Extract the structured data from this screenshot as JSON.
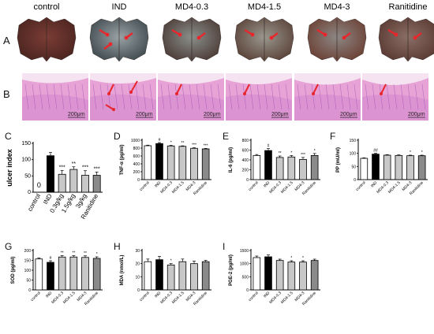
{
  "row_a": {
    "letter": "A",
    "groups": [
      {
        "label": "control",
        "tissue": "#7a3d34",
        "shade": "#4b2420",
        "arrows": 0
      },
      {
        "label": "IND",
        "tissue": "#9aa2a4",
        "shade": "#3f4a4f",
        "arrows": 3
      },
      {
        "label": "MD4-0.3",
        "tissue": "#8a8f8c",
        "shade": "#4c3b35",
        "arrows": 2
      },
      {
        "label": "MD4-1.5",
        "tissue": "#9a978e",
        "shade": "#5a4238",
        "arrows": 2
      },
      {
        "label": "MD4-3",
        "tissue": "#8d8784",
        "shade": "#6b4034",
        "arrows": 2
      },
      {
        "label": "Ranitidine",
        "tissue": "#8a6e66",
        "shade": "#5a3a33",
        "arrows": 2
      }
    ]
  },
  "row_b": {
    "letter": "B",
    "scale_label": "200μm",
    "panels": [
      {
        "arrows": 0
      },
      {
        "arrows": 3
      },
      {
        "arrows": 1
      },
      {
        "arrows": 1
      },
      {
        "arrows": 1
      },
      {
        "arrows": 1
      }
    ]
  },
  "chart_data": [
    {
      "id": "C",
      "type": "bar",
      "ylabel": "ulcer index",
      "ylim": [
        0,
        150
      ],
      "yticks": [
        0,
        50,
        100,
        150
      ],
      "categories": [
        "control",
        "IND",
        "0.3g/kg",
        "1.5g/kg",
        "3g/kg",
        "Ranitidine"
      ],
      "values": [
        0,
        112,
        55,
        70,
        52,
        52
      ],
      "errors": [
        0,
        10,
        12,
        8,
        14,
        10
      ],
      "sig": [
        "",
        "",
        "***",
        "**",
        "***",
        "***"
      ],
      "value_labels": [
        "0",
        "",
        "",
        "",
        "",
        ""
      ]
    },
    {
      "id": "D",
      "type": "bar",
      "ylabel": "TNF-α (pg/ml)",
      "ylim": [
        0,
        1000
      ],
      "yticks": [
        0,
        200,
        400,
        600,
        800,
        1000
      ],
      "categories": [
        "control",
        "IND",
        "MD4-0.3",
        "MD4-1.5",
        "MD4-3",
        "Ranitidine"
      ],
      "values": [
        860,
        915,
        855,
        845,
        795,
        780
      ],
      "errors": [
        15,
        25,
        15,
        12,
        15,
        12
      ],
      "sig": [
        "",
        "#",
        "*",
        "**",
        "***",
        "***"
      ]
    },
    {
      "id": "E",
      "type": "bar",
      "ylabel": "IL-6 (pg/ml)",
      "ylim": [
        0,
        800
      ],
      "yticks": [
        0,
        200,
        400,
        600,
        800
      ],
      "categories": [
        "control",
        "IND",
        "MD4-0.3",
        "MD4-1.5",
        "MD4-3",
        "Ranitidine"
      ],
      "values": [
        490,
        590,
        450,
        460,
        410,
        490
      ],
      "errors": [
        20,
        40,
        30,
        30,
        40,
        40
      ],
      "sig": [
        "",
        "#",
        "**",
        "*",
        "***",
        "*"
      ]
    },
    {
      "id": "F",
      "type": "bar",
      "ylabel": "PP (mU/ml)",
      "ylim": [
        0,
        150
      ],
      "yticks": [
        0,
        50,
        100,
        150
      ],
      "categories": [
        "control",
        "IND",
        "MD4-0.3",
        "MD4-1.5",
        "MD4-3",
        "Ranitidine"
      ],
      "values": [
        81,
        97,
        93,
        92,
        91,
        91
      ],
      "errors": [
        2,
        3,
        2,
        2,
        2,
        2
      ],
      "sig": [
        "",
        "##",
        "",
        "",
        "*",
        "*"
      ]
    },
    {
      "id": "G",
      "type": "bar",
      "ylabel": "SOD (pg/ml)",
      "ylim": [
        0,
        200
      ],
      "yticks": [
        0,
        50,
        100,
        150,
        200
      ],
      "categories": [
        "control",
        "IND",
        "MD4-0.3",
        "MD4-1.5",
        "MD4-3",
        "Ranitidine"
      ],
      "values": [
        157,
        140,
        167,
        167,
        165,
        160
      ],
      "errors": [
        5,
        8,
        7,
        7,
        8,
        8
      ],
      "sig": [
        "",
        "#",
        "**",
        "**",
        "**",
        "*"
      ]
    },
    {
      "id": "H",
      "type": "bar",
      "ylabel": "MDA (nmol/L)",
      "ylim": [
        0,
        30
      ],
      "yticks": [
        0,
        10,
        20,
        30
      ],
      "categories": [
        "control",
        "IND",
        "MD4-0.3",
        "MD4-1.5",
        "MD4-3",
        "Ranitidine"
      ],
      "values": [
        21.5,
        23,
        19,
        21.5,
        20,
        21.5
      ],
      "errors": [
        2,
        2.5,
        1,
        2,
        2,
        1
      ],
      "sig": [
        "",
        "",
        "*",
        "",
        "",
        ""
      ]
    },
    {
      "id": "I",
      "type": "bar",
      "ylabel": "PGE-2 (pg/ml)",
      "ylim": [
        0,
        1500
      ],
      "yticks": [
        0,
        500,
        1000,
        1500
      ],
      "categories": [
        "control",
        "IND",
        "MD4-0.3",
        "MD4-1.5",
        "MD4-3",
        "Ranitidine"
      ],
      "values": [
        1230,
        1260,
        1120,
        1060,
        1060,
        1120
      ],
      "errors": [
        60,
        70,
        50,
        50,
        50,
        50
      ],
      "sig": [
        "",
        "",
        "",
        "*",
        "*",
        ""
      ]
    }
  ],
  "colors": {
    "control_bar": "#ffffff",
    "ind_bar": "#000000",
    "treated_bar": "#c8c8c8",
    "ranitidine_bar": "#8a8a8a",
    "stain_pink": "#e7a3d6",
    "stain_dark": "#9b4bb3",
    "arrow_red": "#e8262b"
  }
}
